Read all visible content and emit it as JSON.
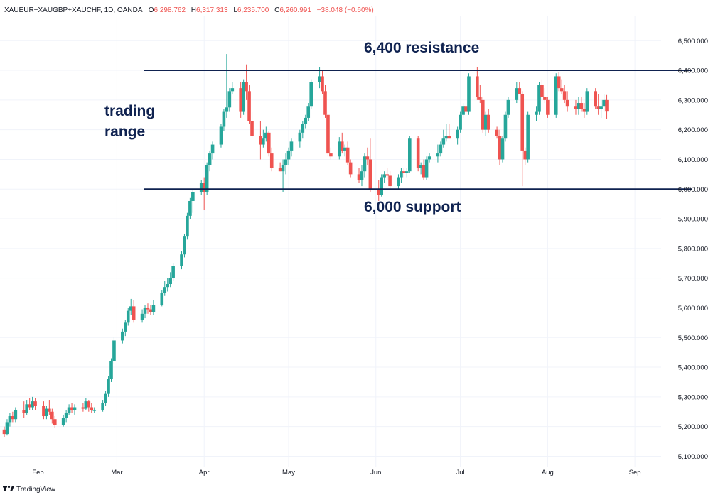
{
  "header": {
    "symbol": "XAUEUR+XAUGBP+XAUCHF, 1D, OANDA",
    "open_label": "O",
    "open": "6,298.762",
    "high_label": "H",
    "high": "6,317.313",
    "low_label": "L",
    "low": "6,235.700",
    "close_label": "C",
    "close": "6,260.991",
    "change": "−38.048 (−0.60%)"
  },
  "footer": {
    "brand": "TradingView"
  },
  "colors": {
    "up": "#26a69a",
    "down": "#ef5350",
    "line": "#0f2250",
    "text": "#131722",
    "grid": "#f0f3fa"
  },
  "chart_data": {
    "type": "candlestick",
    "ylim": [
      5070,
      6570
    ],
    "y_ticks": [
      5100,
      5200,
      5300,
      5400,
      5500,
      5600,
      5700,
      5800,
      5900,
      6000,
      6100,
      6200,
      6300,
      6400,
      6500
    ],
    "y_tick_labels": [
      "5,100.000",
      "5,200.000",
      "5,300.000",
      "5,400.000",
      "5,500.000",
      "5,600.000",
      "5,700.000",
      "5,800.000",
      "5,900.000",
      "6,000.000",
      "6,100.000",
      "6,200.000",
      "6,300.000",
      "6,400.000",
      "6,500.000"
    ],
    "x_range": [
      "2025-01-20",
      "2025-09-30"
    ],
    "x_ticks": [
      {
        "date": "2025-02-01",
        "label": "Feb"
      },
      {
        "date": "2025-03-01",
        "label": "Mar"
      },
      {
        "date": "2025-04-01",
        "label": "Apr"
      },
      {
        "date": "2025-05-01",
        "label": "May"
      },
      {
        "date": "2025-06-01",
        "label": "Jun"
      },
      {
        "date": "2025-07-01",
        "label": "Jul"
      },
      {
        "date": "2025-08-01",
        "label": "Aug"
      },
      {
        "date": "2025-09-01",
        "label": "Sep"
      }
    ],
    "ohlc_columns": [
      "date",
      "open",
      "high",
      "low",
      "close"
    ],
    "ohlc": [
      [
        "2025-01-20",
        5190,
        5200,
        5165,
        5175
      ],
      [
        "2025-01-21",
        5175,
        5225,
        5170,
        5215
      ],
      [
        "2025-01-22",
        5215,
        5245,
        5200,
        5235
      ],
      [
        "2025-01-23",
        5235,
        5250,
        5215,
        5225
      ],
      [
        "2025-01-24",
        5225,
        5265,
        5215,
        5255
      ],
      [
        "2025-01-27",
        5255,
        5285,
        5230,
        5245
      ],
      [
        "2025-01-28",
        5245,
        5290,
        5240,
        5275
      ],
      [
        "2025-01-29",
        5275,
        5295,
        5255,
        5265
      ],
      [
        "2025-01-30",
        5265,
        5300,
        5255,
        5285
      ],
      [
        "2025-01-31",
        5285,
        5295,
        5255,
        5270
      ],
      [
        "2025-02-03",
        5270,
        5285,
        5225,
        5235
      ],
      [
        "2025-02-04",
        5235,
        5270,
        5225,
        5260
      ],
      [
        "2025-02-05",
        5260,
        5290,
        5240,
        5250
      ],
      [
        "2025-02-06",
        5250,
        5260,
        5210,
        5225
      ],
      [
        "2025-02-07",
        5225,
        5235,
        5195,
        5205
      ],
      [
        "2025-02-10",
        5205,
        5240,
        5200,
        5230
      ],
      [
        "2025-02-11",
        5230,
        5255,
        5215,
        5245
      ],
      [
        "2025-02-12",
        5245,
        5275,
        5240,
        5265
      ],
      [
        "2025-02-13",
        5265,
        5280,
        5245,
        5255
      ],
      [
        "2025-02-14",
        5255,
        5275,
        5240,
        5265
      ],
      [
        "2025-02-17",
        5265,
        5280,
        5250,
        5260
      ],
      [
        "2025-02-18",
        5260,
        5295,
        5255,
        5285
      ],
      [
        "2025-02-19",
        5285,
        5290,
        5250,
        5265
      ],
      [
        "2025-02-20",
        5265,
        5280,
        5245,
        5255
      ],
      [
        "2025-02-21",
        5255,
        5265,
        5245,
        5255
      ],
      [
        "2025-02-24",
        5255,
        5290,
        5250,
        5280
      ],
      [
        "2025-02-25",
        5280,
        5320,
        5270,
        5310
      ],
      [
        "2025-02-26",
        5310,
        5370,
        5300,
        5360
      ],
      [
        "2025-02-27",
        5360,
        5430,
        5350,
        5420
      ],
      [
        "2025-02-28",
        5420,
        5500,
        5410,
        5490
      ],
      [
        "2025-03-03",
        5490,
        5530,
        5480,
        5520
      ],
      [
        "2025-03-04",
        5520,
        5560,
        5505,
        5550
      ],
      [
        "2025-03-05",
        5550,
        5600,
        5540,
        5590
      ],
      [
        "2025-03-06",
        5590,
        5630,
        5575,
        5605
      ],
      [
        "2025-03-07",
        5605,
        5625,
        5550,
        5560
      ],
      [
        "2025-03-10",
        5560,
        5595,
        5550,
        5580
      ],
      [
        "2025-03-11",
        5580,
        5610,
        5565,
        5600
      ],
      [
        "2025-03-12",
        5600,
        5615,
        5580,
        5595
      ],
      [
        "2025-03-13",
        5595,
        5610,
        5575,
        5585
      ],
      [
        "2025-03-14",
        5585,
        5625,
        5575,
        5610
      ],
      [
        "2025-03-17",
        5610,
        5660,
        5605,
        5650
      ],
      [
        "2025-03-18",
        5650,
        5690,
        5640,
        5670
      ],
      [
        "2025-03-19",
        5670,
        5700,
        5655,
        5680
      ],
      [
        "2025-03-20",
        5680,
        5720,
        5670,
        5700
      ],
      [
        "2025-03-21",
        5700,
        5750,
        5690,
        5740
      ],
      [
        "2025-03-24",
        5740,
        5790,
        5730,
        5780
      ],
      [
        "2025-03-25",
        5780,
        5850,
        5770,
        5840
      ],
      [
        "2025-03-26",
        5840,
        5920,
        5830,
        5910
      ],
      [
        "2025-03-27",
        5910,
        5970,
        5900,
        5960
      ],
      [
        "2025-03-28",
        5960,
        6000,
        5920,
        5990
      ],
      [
        "2025-03-31",
        5990,
        6030,
        5980,
        6020
      ],
      [
        "2025-04-01",
        6020,
        6040,
        5930,
        5990
      ],
      [
        "2025-04-02",
        5990,
        6090,
        5980,
        6080
      ],
      [
        "2025-04-03",
        6080,
        6130,
        6060,
        6120
      ],
      [
        "2025-04-04",
        6120,
        6160,
        6100,
        6150
      ],
      [
        "2025-04-07",
        6150,
        6220,
        6140,
        6210
      ],
      [
        "2025-04-08",
        6210,
        6270,
        6195,
        6260
      ],
      [
        "2025-04-09",
        6260,
        6455,
        6240,
        6275
      ],
      [
        "2025-04-10",
        6275,
        6340,
        6260,
        6330
      ],
      [
        "2025-04-11",
        6330,
        6360,
        6320,
        6340
      ],
      [
        "2025-04-14",
        6340,
        6360,
        6240,
        6260
      ],
      [
        "2025-04-15",
        6260,
        6370,
        6250,
        6360
      ],
      [
        "2025-04-16",
        6360,
        6420,
        6300,
        6330
      ],
      [
        "2025-04-17",
        6330,
        6350,
        6220,
        6230
      ],
      [
        "2025-04-18",
        6230,
        6260,
        6170,
        6180
      ],
      [
        "2025-04-21",
        6180,
        6230,
        6100,
        6150
      ],
      [
        "2025-04-22",
        6150,
        6200,
        6140,
        6170
      ],
      [
        "2025-04-23",
        6170,
        6210,
        6160,
        6190
      ],
      [
        "2025-04-24",
        6190,
        6195,
        6110,
        6120
      ],
      [
        "2025-04-25",
        6120,
        6140,
        6060,
        6070
      ],
      [
        "2025-04-28",
        6070,
        6090,
        6060,
        6060
      ],
      [
        "2025-04-29",
        6060,
        6100,
        5990,
        6080
      ],
      [
        "2025-04-30",
        6080,
        6120,
        6050,
        6100
      ],
      [
        "2025-05-01",
        6100,
        6140,
        6080,
        6130
      ],
      [
        "2025-05-02",
        6130,
        6170,
        6110,
        6160
      ],
      [
        "2025-05-05",
        6160,
        6200,
        6140,
        6190
      ],
      [
        "2025-05-06",
        6190,
        6230,
        6170,
        6220
      ],
      [
        "2025-05-07",
        6220,
        6250,
        6205,
        6240
      ],
      [
        "2025-05-08",
        6240,
        6290,
        6230,
        6280
      ],
      [
        "2025-05-09",
        6280,
        6370,
        6270,
        6360
      ],
      [
        "2025-05-12",
        6360,
        6410,
        6340,
        6380
      ],
      [
        "2025-05-13",
        6380,
        6400,
        6320,
        6330
      ],
      [
        "2025-05-14",
        6330,
        6350,
        6240,
        6250
      ],
      [
        "2025-05-15",
        6250,
        6260,
        6110,
        6120
      ],
      [
        "2025-05-16",
        6120,
        6140,
        6100,
        6110
      ],
      [
        "2025-05-19",
        6110,
        6175,
        6100,
        6160
      ],
      [
        "2025-05-20",
        6160,
        6190,
        6120,
        6130
      ],
      [
        "2025-05-21",
        6130,
        6150,
        6110,
        6140
      ],
      [
        "2025-05-22",
        6140,
        6160,
        6080,
        6090
      ],
      [
        "2025-05-23",
        6090,
        6100,
        6040,
        6050
      ],
      [
        "2025-05-26",
        6050,
        6070,
        6020,
        6030
      ],
      [
        "2025-05-27",
        6030,
        6080,
        6010,
        6060
      ],
      [
        "2025-05-28",
        6060,
        6120,
        6040,
        6110
      ],
      [
        "2025-05-29",
        6110,
        6140,
        6080,
        6100
      ],
      [
        "2025-05-30",
        6100,
        6170,
        5990,
        6000
      ],
      [
        "2025-06-02",
        6000,
        6030,
        5960,
        5980
      ],
      [
        "2025-06-03",
        5980,
        6050,
        5975,
        6040
      ],
      [
        "2025-06-04",
        6040,
        6060,
        6020,
        6050
      ],
      [
        "2025-06-05",
        6050,
        6070,
        6030,
        6045
      ],
      [
        "2025-06-06",
        6045,
        6060,
        6000,
        6010
      ],
      [
        "2025-06-09",
        6010,
        6050,
        6000,
        6040
      ],
      [
        "2025-06-10",
        6040,
        6070,
        6020,
        6060
      ],
      [
        "2025-06-11",
        6060,
        6070,
        6040,
        6055
      ],
      [
        "2025-06-12",
        6055,
        6070,
        6040,
        6060
      ],
      [
        "2025-06-13",
        6060,
        6180,
        6055,
        6170
      ],
      [
        "2025-06-16",
        6170,
        6180,
        6060,
        6070
      ],
      [
        "2025-06-17",
        6070,
        6090,
        6050,
        6080
      ],
      [
        "2025-06-18",
        6080,
        6100,
        6030,
        6040
      ],
      [
        "2025-06-19",
        6040,
        6110,
        6030,
        6100
      ],
      [
        "2025-06-20",
        6100,
        6120,
        6090,
        6110
      ],
      [
        "2025-06-23",
        6110,
        6150,
        6090,
        6120
      ],
      [
        "2025-06-24",
        6120,
        6160,
        6110,
        6150
      ],
      [
        "2025-06-25",
        6150,
        6200,
        6140,
        6170
      ],
      [
        "2025-06-26",
        6170,
        6220,
        6160,
        6180
      ],
      [
        "2025-06-27",
        6180,
        6220,
        6170,
        6170
      ],
      [
        "2025-06-30",
        6170,
        6210,
        6150,
        6200
      ],
      [
        "2025-07-01",
        6200,
        6260,
        6190,
        6250
      ],
      [
        "2025-07-02",
        6250,
        6290,
        6240,
        6280
      ],
      [
        "2025-07-03",
        6280,
        6300,
        6250,
        6260
      ],
      [
        "2025-07-04",
        6260,
        6390,
        6250,
        6380
      ],
      [
        "2025-07-07",
        6380,
        6410,
        6300,
        6310
      ],
      [
        "2025-07-08",
        6310,
        6350,
        6290,
        6300
      ],
      [
        "2025-07-09",
        6300,
        6310,
        6190,
        6200
      ],
      [
        "2025-07-10",
        6200,
        6260,
        6180,
        6250
      ],
      [
        "2025-07-11",
        6250,
        6270,
        6190,
        6200
      ],
      [
        "2025-07-14",
        6200,
        6210,
        6170,
        6180
      ],
      [
        "2025-07-15",
        6180,
        6200,
        6080,
        6100
      ],
      [
        "2025-07-16",
        6100,
        6180,
        6090,
        6170
      ],
      [
        "2025-07-17",
        6170,
        6260,
        6160,
        6250
      ],
      [
        "2025-07-18",
        6250,
        6310,
        6240,
        6300
      ],
      [
        "2025-07-21",
        6300,
        6360,
        6290,
        6340
      ],
      [
        "2025-07-22",
        6340,
        6360,
        6320,
        6320
      ],
      [
        "2025-07-23",
        6320,
        6330,
        6010,
        6130
      ],
      [
        "2025-07-24",
        6130,
        6140,
        6080,
        6100
      ],
      [
        "2025-07-25",
        6100,
        6260,
        6090,
        6250
      ],
      [
        "2025-07-28",
        6250,
        6280,
        6230,
        6260
      ],
      [
        "2025-07-29",
        6260,
        6360,
        6250,
        6350
      ],
      [
        "2025-07-30",
        6350,
        6370,
        6300,
        6310
      ],
      [
        "2025-07-31",
        6310,
        6340,
        6290,
        6300
      ],
      [
        "2025-08-01",
        6300,
        6310,
        6240,
        6250
      ],
      [
        "2025-08-04",
        6250,
        6390,
        6240,
        6380
      ],
      [
        "2025-08-05",
        6380,
        6395,
        6330,
        6340
      ],
      [
        "2025-08-06",
        6340,
        6370,
        6320,
        6330
      ],
      [
        "2025-08-07",
        6330,
        6350,
        6290,
        6300
      ],
      [
        "2025-08-08",
        6300,
        6330,
        6260,
        6280
      ],
      [
        "2025-08-11",
        6280,
        6300,
        6250,
        6270
      ],
      [
        "2025-08-12",
        6270,
        6310,
        6250,
        6290
      ],
      [
        "2025-08-13",
        6290,
        6310,
        6260,
        6270
      ],
      [
        "2025-08-14",
        6270,
        6290,
        6240,
        6260
      ],
      [
        "2025-08-15",
        6260,
        6340,
        6250,
        6330
      ],
      [
        "2025-08-18",
        6330,
        6340,
        6270,
        6280
      ],
      [
        "2025-08-19",
        6280,
        6320,
        6250,
        6270
      ],
      [
        "2025-08-20",
        6270,
        6300,
        6240,
        6280
      ],
      [
        "2025-08-21",
        6280,
        6320,
        6260,
        6300
      ],
      [
        "2025-08-22",
        6300,
        6317,
        6236,
        6261
      ]
    ]
  },
  "annotations": {
    "resistance": {
      "value": 6400,
      "label": "6,400 resistance"
    },
    "support": {
      "value": 6000,
      "label": "6,000 support"
    },
    "range_line1": "trading",
    "range_line2": "range"
  }
}
